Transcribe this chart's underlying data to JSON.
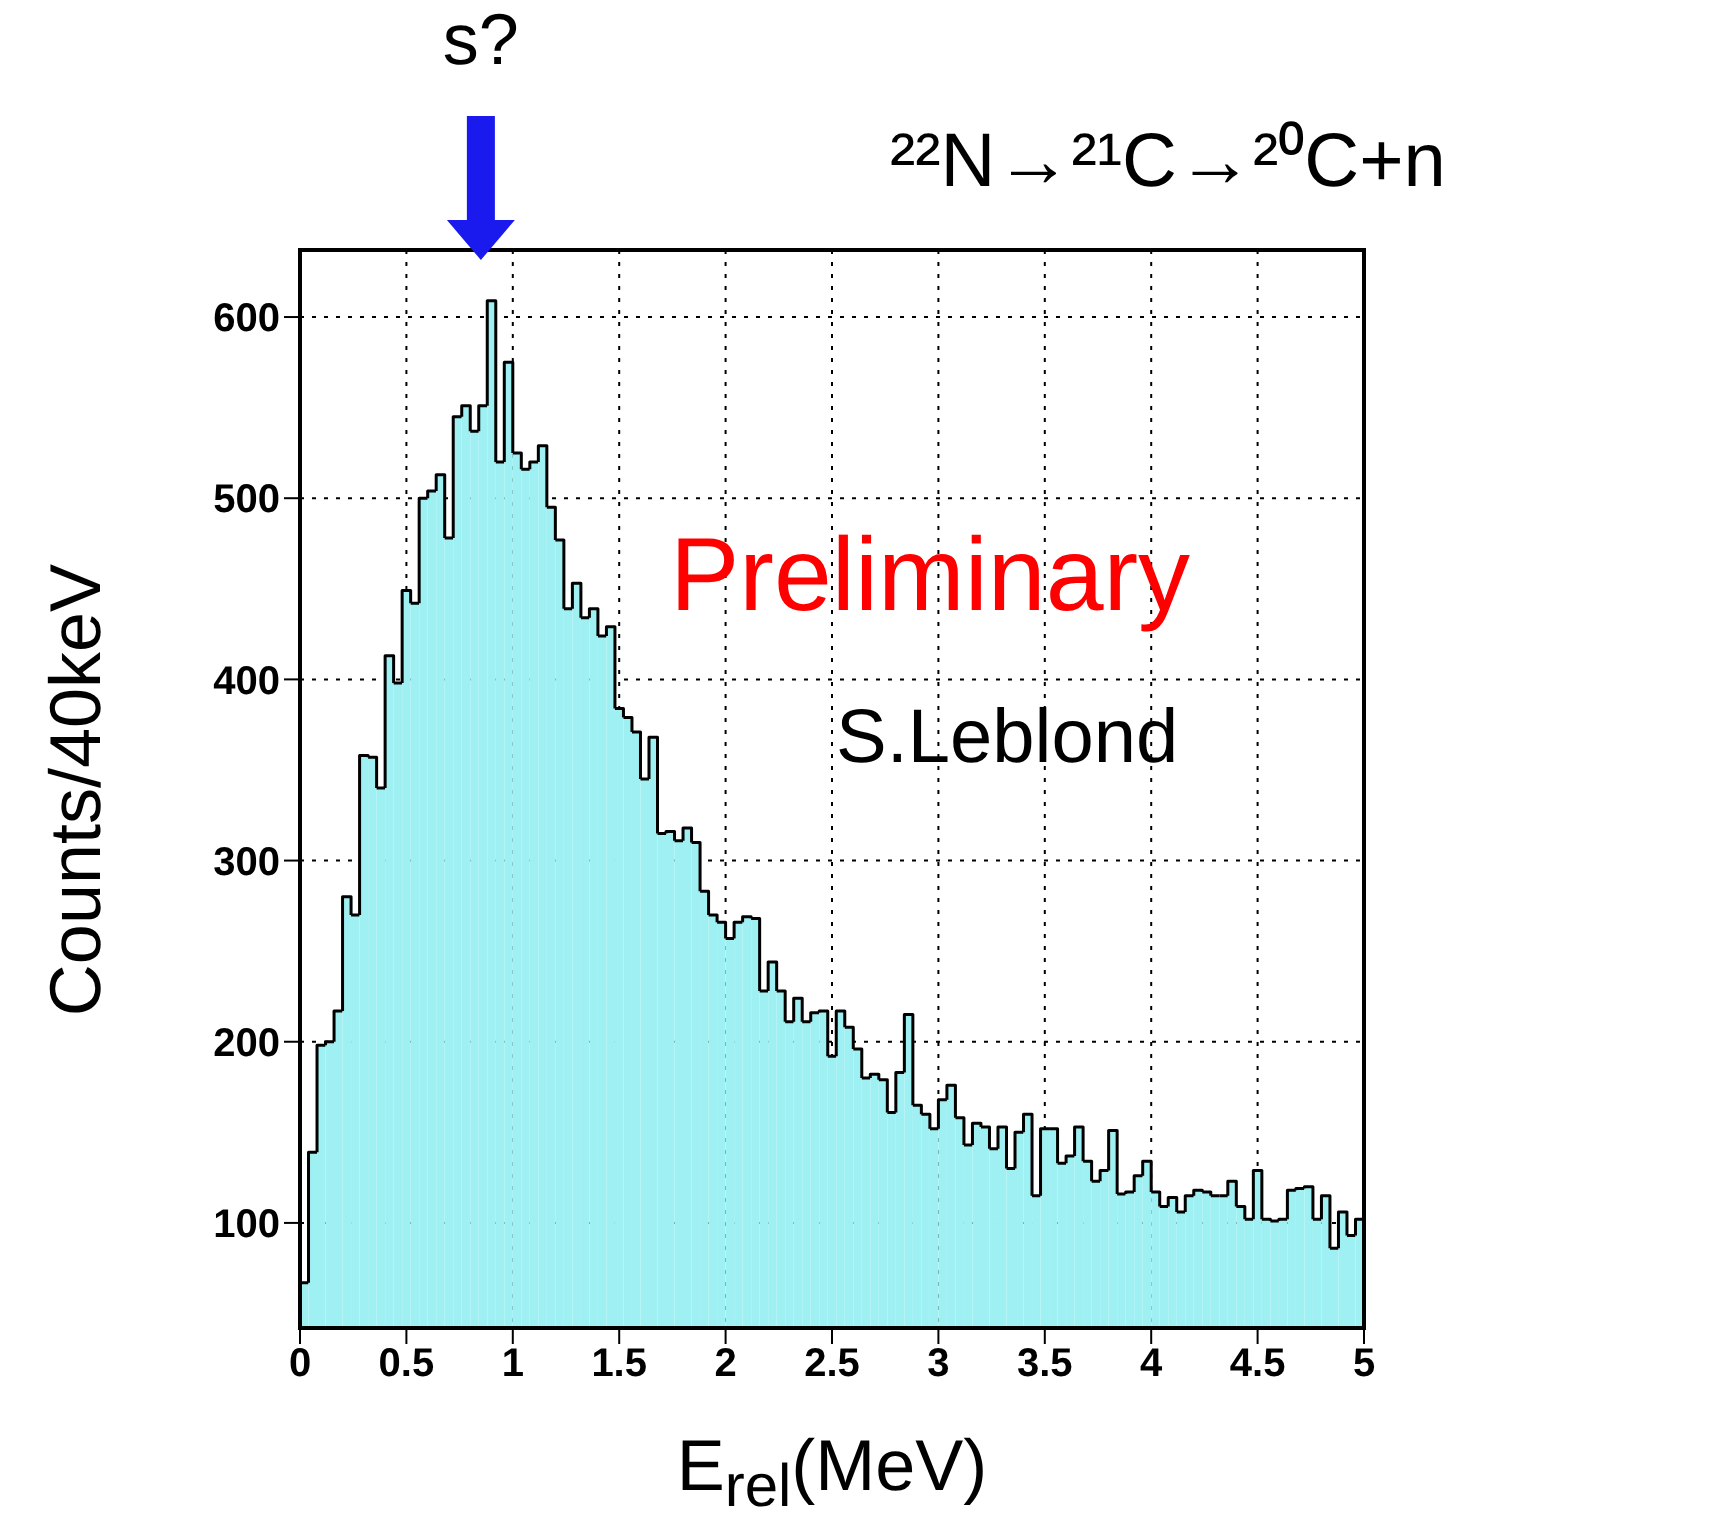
{
  "chart_data": {
    "type": "histogram",
    "title": "²²N→²¹C→²⁰C+n",
    "xlabel": "E$_{rel}$(MeV)",
    "ylabel": "Counts/40keV",
    "annotations": [
      "s?",
      "Preliminary",
      "S.Leblond"
    ],
    "bins": [
      0,
      0.04,
      0.08,
      0.12,
      0.16,
      0.2,
      0.24,
      0.28,
      0.32,
      0.36,
      0.4,
      0.44,
      0.48,
      0.52,
      0.56,
      0.6,
      0.64,
      0.68,
      0.72,
      0.76,
      0.8,
      0.84,
      0.88,
      0.92,
      0.96,
      1,
      1.04,
      1.08,
      1.12,
      1.16,
      1.2,
      1.24,
      1.28,
      1.32,
      1.36,
      1.4,
      1.44,
      1.48,
      1.52,
      1.56,
      1.6,
      1.64,
      1.68,
      1.72,
      1.76,
      1.8,
      1.84,
      1.88,
      1.92,
      1.96,
      2,
      2.04,
      2.08,
      2.12,
      2.16,
      2.2,
      2.24,
      2.28,
      2.32,
      2.36,
      2.4,
      2.44,
      2.48,
      2.52,
      2.56,
      2.6,
      2.64,
      2.68,
      2.72,
      2.76,
      2.8,
      2.84,
      2.88,
      2.92,
      2.96,
      3,
      3.04,
      3.08,
      3.12,
      3.16,
      3.2,
      3.24,
      3.28,
      3.32,
      3.36,
      3.4,
      3.44,
      3.48,
      3.52,
      3.56,
      3.6,
      3.64,
      3.68,
      3.72,
      3.76,
      3.8,
      3.84,
      3.88,
      3.92,
      3.96,
      4,
      4.04,
      4.08,
      4.12,
      4.16,
      4.2,
      4.24,
      4.28,
      4.32,
      4.36,
      4.4,
      4.44,
      4.48,
      4.52,
      4.56,
      4.6,
      4.64,
      4.68,
      4.72,
      4.76,
      4.8,
      4.84,
      4.88,
      4.92,
      4.96,
      5
    ],
    "values": [
      67,
      139,
      198,
      200,
      217,
      280,
      270,
      358,
      357,
      340,
      413,
      398,
      449,
      442,
      500,
      504,
      513,
      478,
      545,
      551,
      537,
      551,
      609,
      520,
      575,
      525,
      516,
      520,
      529,
      495,
      477,
      439,
      453,
      434,
      439,
      424,
      429,
      384,
      379,
      371,
      345,
      368,
      315,
      316,
      311,
      318,
      310,
      283,
      270,
      266,
      257,
      266,
      269,
      268,
      228,
      244,
      228,
      211,
      224,
      211,
      216,
      217,
      192,
      217,
      208,
      196,
      180,
      182,
      179,
      161,
      183,
      215,
      165,
      160,
      152,
      168,
      176,
      158,
      143,
      155,
      153,
      141,
      153,
      130,
      150,
      160,
      115,
      152,
      152,
      133,
      137,
      153,
      134,
      123,
      129,
      151,
      116,
      117,
      126,
      134,
      117,
      109,
      114,
      106,
      115,
      118,
      117,
      115,
      115,
      123,
      109,
      102,
      129,
      102,
      101,
      102,
      118,
      119,
      120,
      102,
      115,
      86,
      106,
      93,
      102
    ],
    "color": "#9ff0f2",
    "xlim": [
      0,
      5
    ],
    "xticks": [
      0,
      {
        "value": 0.5,
        "label": "0.5"
      },
      1,
      {
        "value": 1.5,
        "label": "1.5"
      },
      2,
      {
        "value": 2.5,
        "label": "2.5"
      },
      3,
      {
        "value": 3.5,
        "label": "3.5"
      },
      4,
      {
        "value": 4.5,
        "label": "4.5"
      },
      5
    ],
    "ylim": [
      42,
      637
    ],
    "yticks": [
      100,
      200,
      300,
      400,
      500,
      600
    ],
    "grid": true,
    "legend": false
  }
}
